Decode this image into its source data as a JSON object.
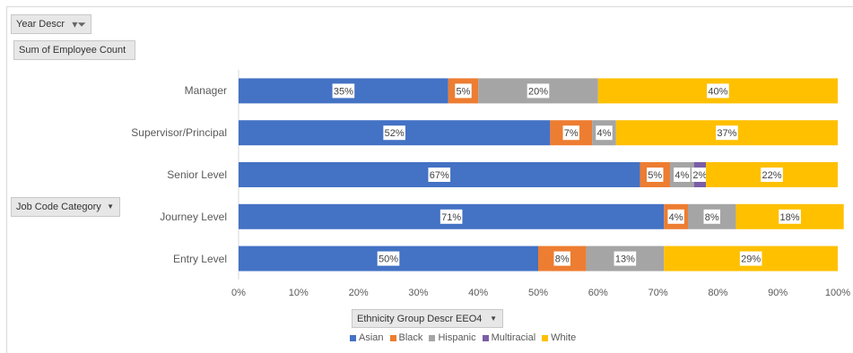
{
  "pivot_fields": {
    "year_filter": "Year Descr",
    "values_field": "Sum of Employee Count",
    "row_field": "Job Code Category",
    "legend_field": "Ethnicity Group Descr EEO4"
  },
  "icons": {
    "filter": "filter-funnel-icon",
    "dropdown": "dropdown-arrow-icon"
  },
  "chart_data": {
    "type": "bar",
    "orientation": "horizontal",
    "stacked": "100%",
    "title": "",
    "xlabel": "",
    "ylabel": "",
    "xlim": [
      0,
      100
    ],
    "x_ticks": [
      "0%",
      "10%",
      "20%",
      "30%",
      "40%",
      "50%",
      "60%",
      "70%",
      "80%",
      "90%",
      "100%"
    ],
    "grid": false,
    "legend_position": "bottom",
    "categories": [
      "Manager",
      "Supervisor/Principal",
      "Senior Level",
      "Journey Level",
      "Entry Level"
    ],
    "series": [
      {
        "name": "Asian",
        "color": "#4472c4",
        "values": [
          35,
          52,
          67,
          71,
          50
        ]
      },
      {
        "name": "Black",
        "color": "#ed7d31",
        "values": [
          5,
          7,
          5,
          4,
          8
        ]
      },
      {
        "name": "Hispanic",
        "color": "#a5a5a5",
        "values": [
          20,
          4,
          4,
          8,
          13
        ]
      },
      {
        "name": "Multiracial",
        "color": "#7b5ea7",
        "values": [
          0,
          0,
          2,
          0,
          0
        ]
      },
      {
        "name": "White",
        "color": "#ffc000",
        "values": [
          40,
          37,
          22,
          18,
          29
        ]
      }
    ],
    "data_labels": [
      [
        "35%",
        "5%",
        "20%",
        "",
        "40%"
      ],
      [
        "52%",
        "7%",
        "4%",
        "",
        "37%"
      ],
      [
        "67%",
        "5%",
        "4%",
        "2%",
        "22%"
      ],
      [
        "71%",
        "4%",
        "8%",
        "",
        "18%"
      ],
      [
        "50%",
        "8%",
        "13%",
        "",
        "29%"
      ]
    ]
  }
}
